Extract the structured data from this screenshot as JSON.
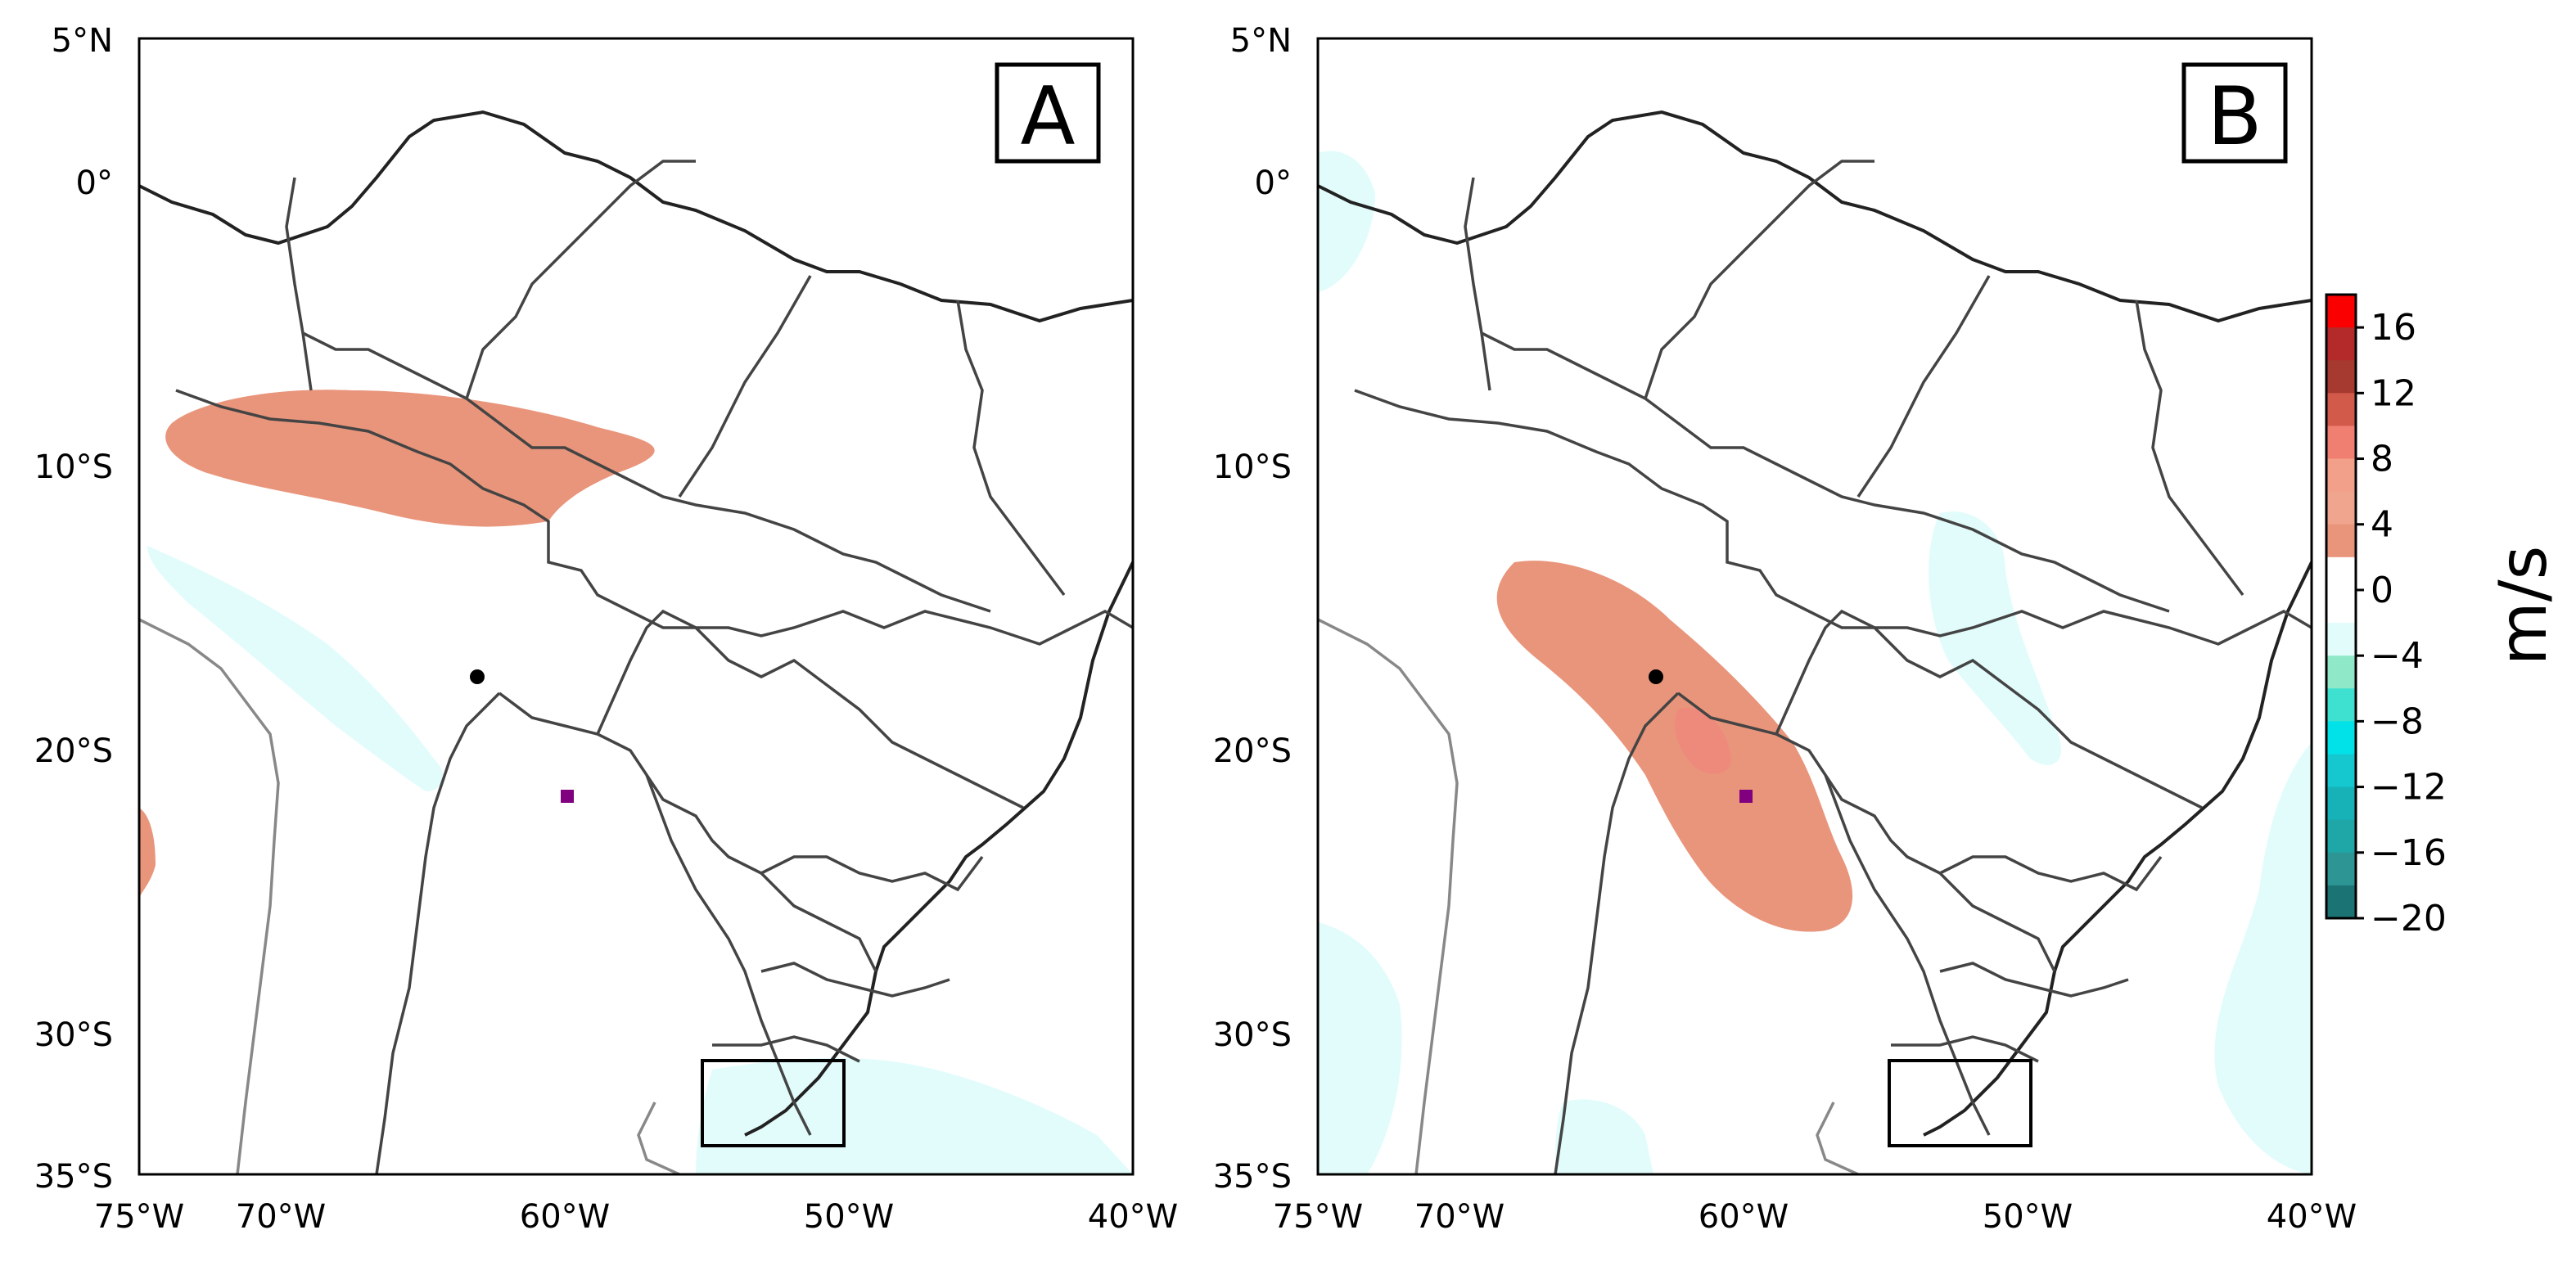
{
  "figure": {
    "map_extent": {
      "lon": [
        -75,
        -40
      ],
      "lat": [
        -35,
        5
      ]
    },
    "x_ticks": [
      {
        "value": -75,
        "label": "75°W"
      },
      {
        "value": -70,
        "label": "70°W"
      },
      {
        "value": -60,
        "label": "60°W"
      },
      {
        "value": -50,
        "label": "50°W"
      },
      {
        "value": -40,
        "label": "40°W"
      }
    ],
    "y_ticks": [
      {
        "value": 5,
        "label": "5°N"
      },
      {
        "value": 0,
        "label": "0°"
      },
      {
        "value": -10,
        "label": "10°S"
      },
      {
        "value": -20,
        "label": "20°S"
      },
      {
        "value": -30,
        "label": "30°S"
      },
      {
        "value": -35,
        "label": "35°S"
      }
    ],
    "panels": [
      {
        "letter": "A"
      },
      {
        "letter": "B"
      }
    ],
    "markers": {
      "black_dot": {
        "lon": -63,
        "lat": -17.5,
        "color": "#000000"
      },
      "purple_square": {
        "lon": -60,
        "lat": -21.8,
        "color": "#800080"
      }
    },
    "box": {
      "lon": [
        -55,
        -50
      ],
      "lat": [
        -34,
        -31
      ]
    },
    "colorbar": {
      "unit": "m/s",
      "tick_labels": [
        {
          "value": 16,
          "label": "16"
        },
        {
          "value": 12,
          "label": "12"
        },
        {
          "value": 8,
          "label": "8"
        },
        {
          "value": 4,
          "label": "4"
        },
        {
          "value": 0,
          "label": "0"
        },
        {
          "value": -4,
          "label": "−4"
        },
        {
          "value": -8,
          "label": "−8"
        },
        {
          "value": -12,
          "label": "−12"
        },
        {
          "value": -16,
          "label": "−16"
        },
        {
          "value": -20,
          "label": "−20"
        }
      ],
      "bins": [
        {
          "from": 16,
          "to": 18,
          "color": "#fb0000"
        },
        {
          "from": 14,
          "to": 16,
          "color": "#b42a2a"
        },
        {
          "from": 12,
          "to": 14,
          "color": "#a63a30"
        },
        {
          "from": 10,
          "to": 12,
          "color": "#d25a4a"
        },
        {
          "from": 8,
          "to": 10,
          "color": "#f07f72"
        },
        {
          "from": 6,
          "to": 8,
          "color": "#f2a08a"
        },
        {
          "from": 4,
          "to": 6,
          "color": "#f0a58e"
        },
        {
          "from": 2,
          "to": 4,
          "color": "#e9957b"
        },
        {
          "from": 0,
          "to": 2,
          "color": "#ffffff"
        },
        {
          "from": -2,
          "to": 0,
          "color": "#ffffff"
        },
        {
          "from": -4,
          "to": -2,
          "color": "#e2fcfc"
        },
        {
          "from": -6,
          "to": -4,
          "color": "#8fe8c8"
        },
        {
          "from": -8,
          "to": -6,
          "color": "#3ee0d0"
        },
        {
          "from": -10,
          "to": -8,
          "color": "#00e2e8"
        },
        {
          "from": -12,
          "to": -10,
          "color": "#15c7cf"
        },
        {
          "from": -14,
          "to": -12,
          "color": "#16b2b8"
        },
        {
          "from": -16,
          "to": -14,
          "color": "#1fa6a6"
        },
        {
          "from": -18,
          "to": -16,
          "color": "#2d9694"
        },
        {
          "from": -20,
          "to": -18,
          "color": "#1c7374"
        }
      ]
    },
    "anomaly_colors": {
      "positive_light": "#e9957b",
      "positive_mid": "#ee8a7c",
      "negative_light": "#e2fcfc"
    }
  }
}
